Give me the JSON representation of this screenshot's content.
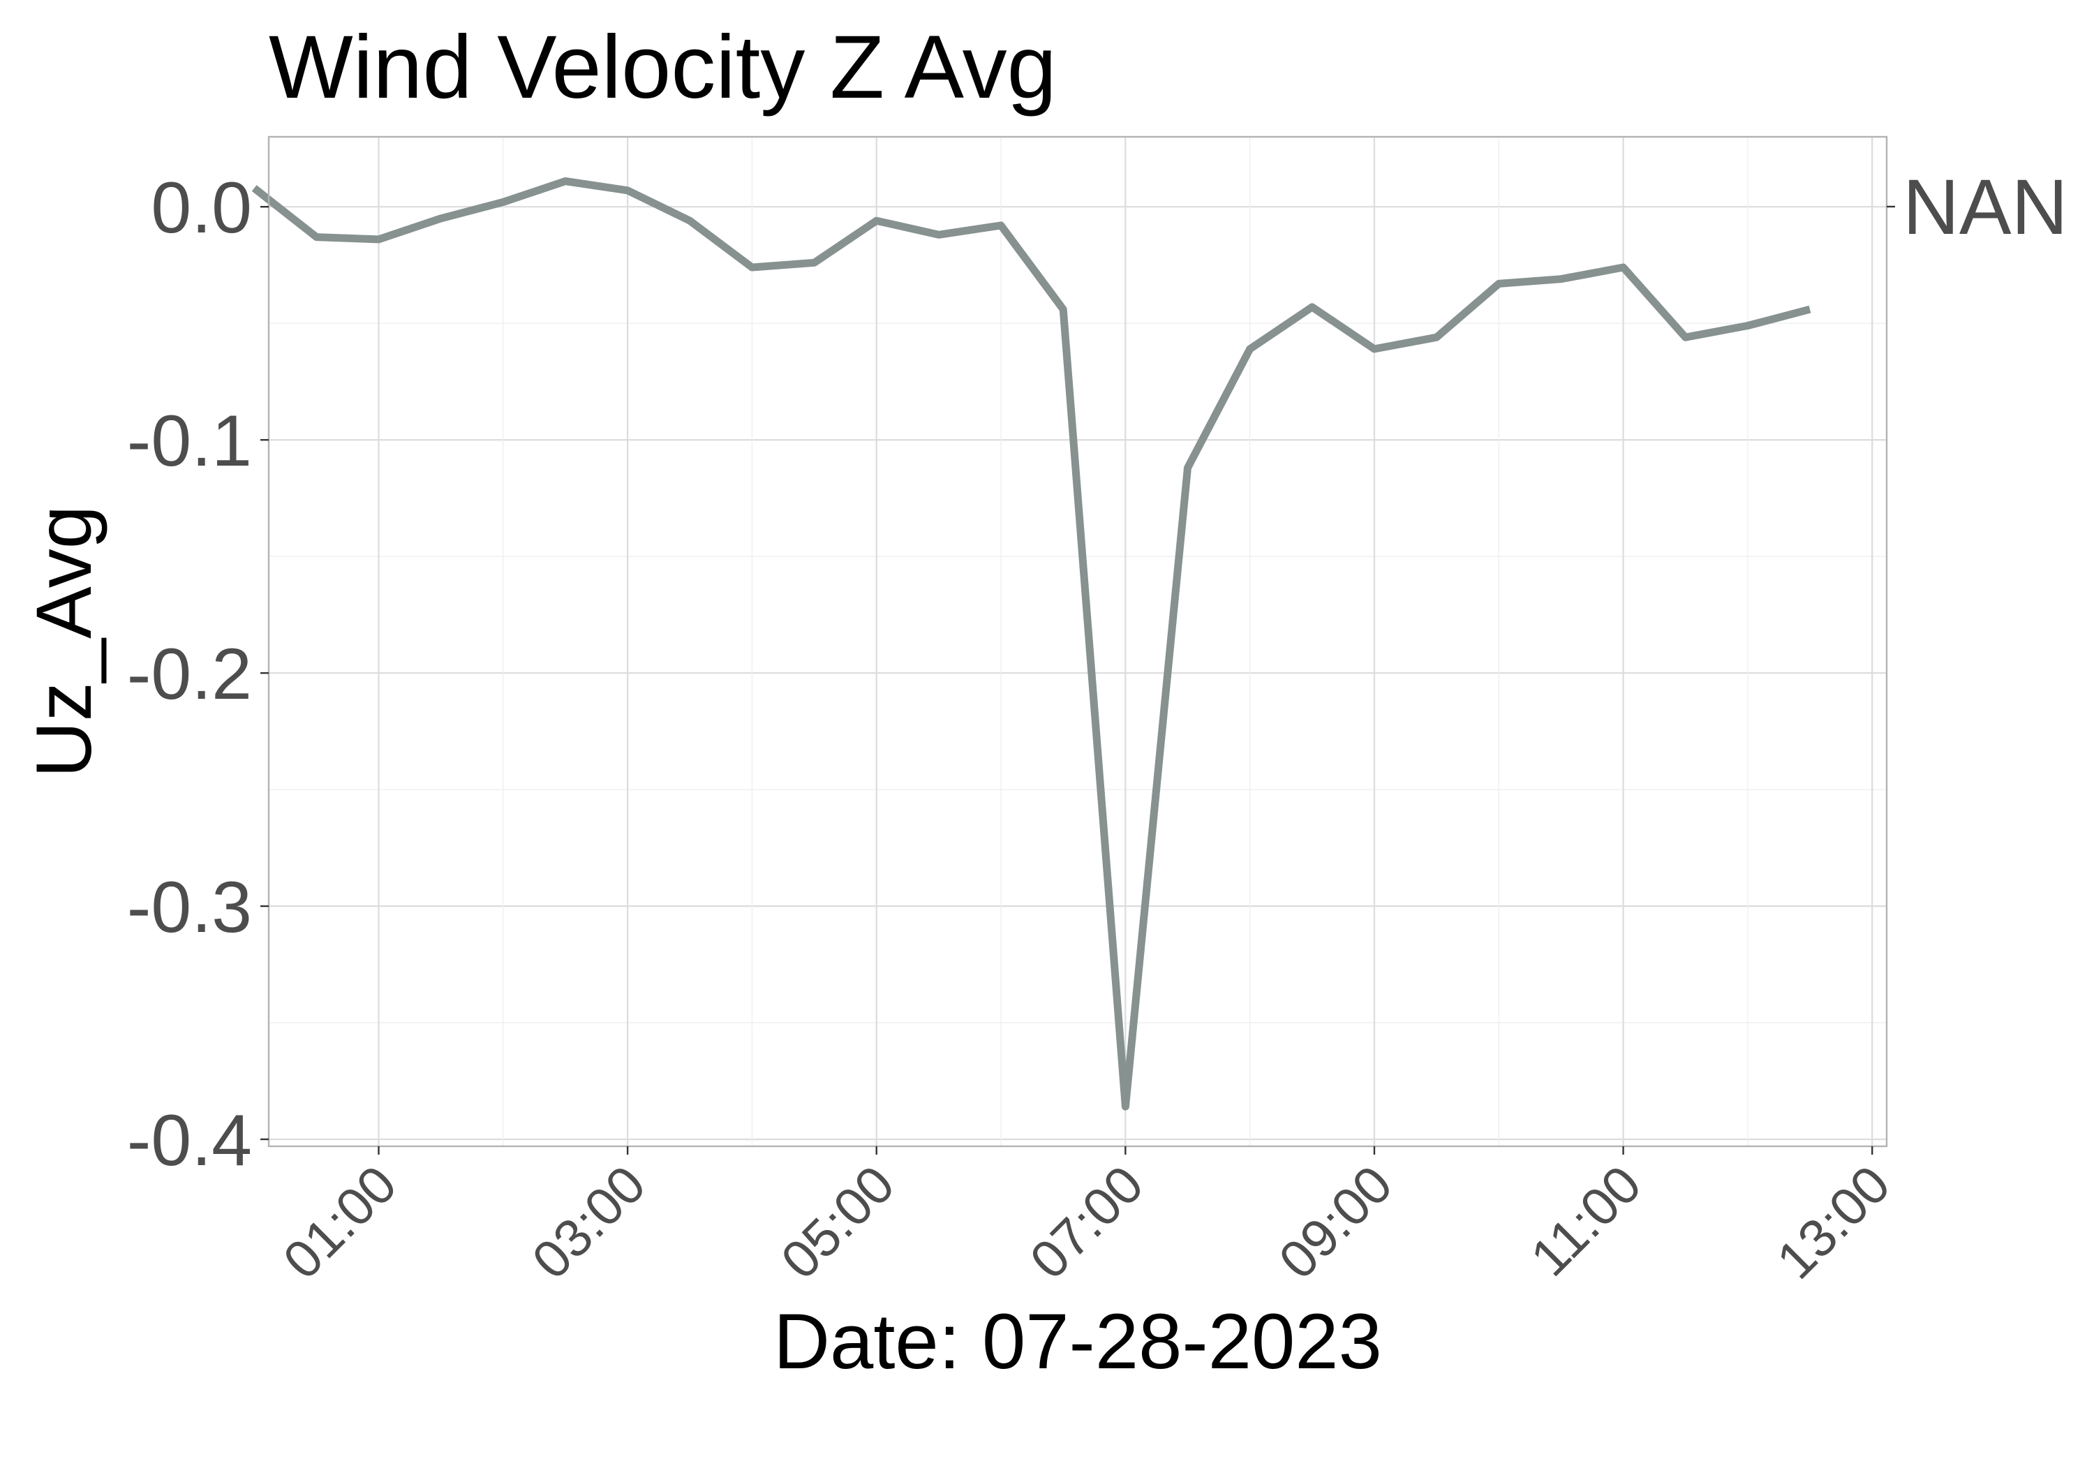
{
  "chart_data": {
    "type": "line",
    "title": "Wind Velocity Z Avg",
    "xlabel": "Date: 07-28-2023",
    "ylabel": "Uz_Avg",
    "secondary_axis_label": "NAN",
    "x_ticks": [
      "01:00",
      "03:00",
      "05:00",
      "07:00",
      "09:00",
      "11:00",
      "13:00"
    ],
    "y_ticks": [
      "0.0",
      "-0.1",
      "-0.2",
      "-0.3",
      "-0.4"
    ],
    "xlim": [
      "00:07",
      "13:07"
    ],
    "ylim": [
      -0.403,
      0.03
    ],
    "grid": true,
    "line_color": "#869190",
    "series": [
      {
        "x": [
          "00:00",
          "00:30",
          "01:00",
          "01:30",
          "02:00",
          "02:30",
          "03:00",
          "03:30",
          "04:00",
          "04:30",
          "05:00",
          "05:30",
          "06:00",
          "06:30",
          "07:00",
          "07:30",
          "08:00",
          "08:30",
          "09:00",
          "09:30",
          "10:00",
          "10:30",
          "11:00",
          "11:30",
          "12:00",
          "12:30"
        ],
        "values": [
          0.008,
          -0.013,
          -0.014,
          -0.005,
          0.002,
          0.011,
          0.007,
          -0.006,
          -0.026,
          -0.024,
          -0.006,
          -0.012,
          -0.008,
          -0.044,
          -0.386,
          -0.112,
          -0.061,
          -0.043,
          -0.061,
          -0.056,
          -0.033,
          -0.031,
          -0.026,
          -0.056,
          -0.051,
          -0.044
        ]
      }
    ]
  }
}
